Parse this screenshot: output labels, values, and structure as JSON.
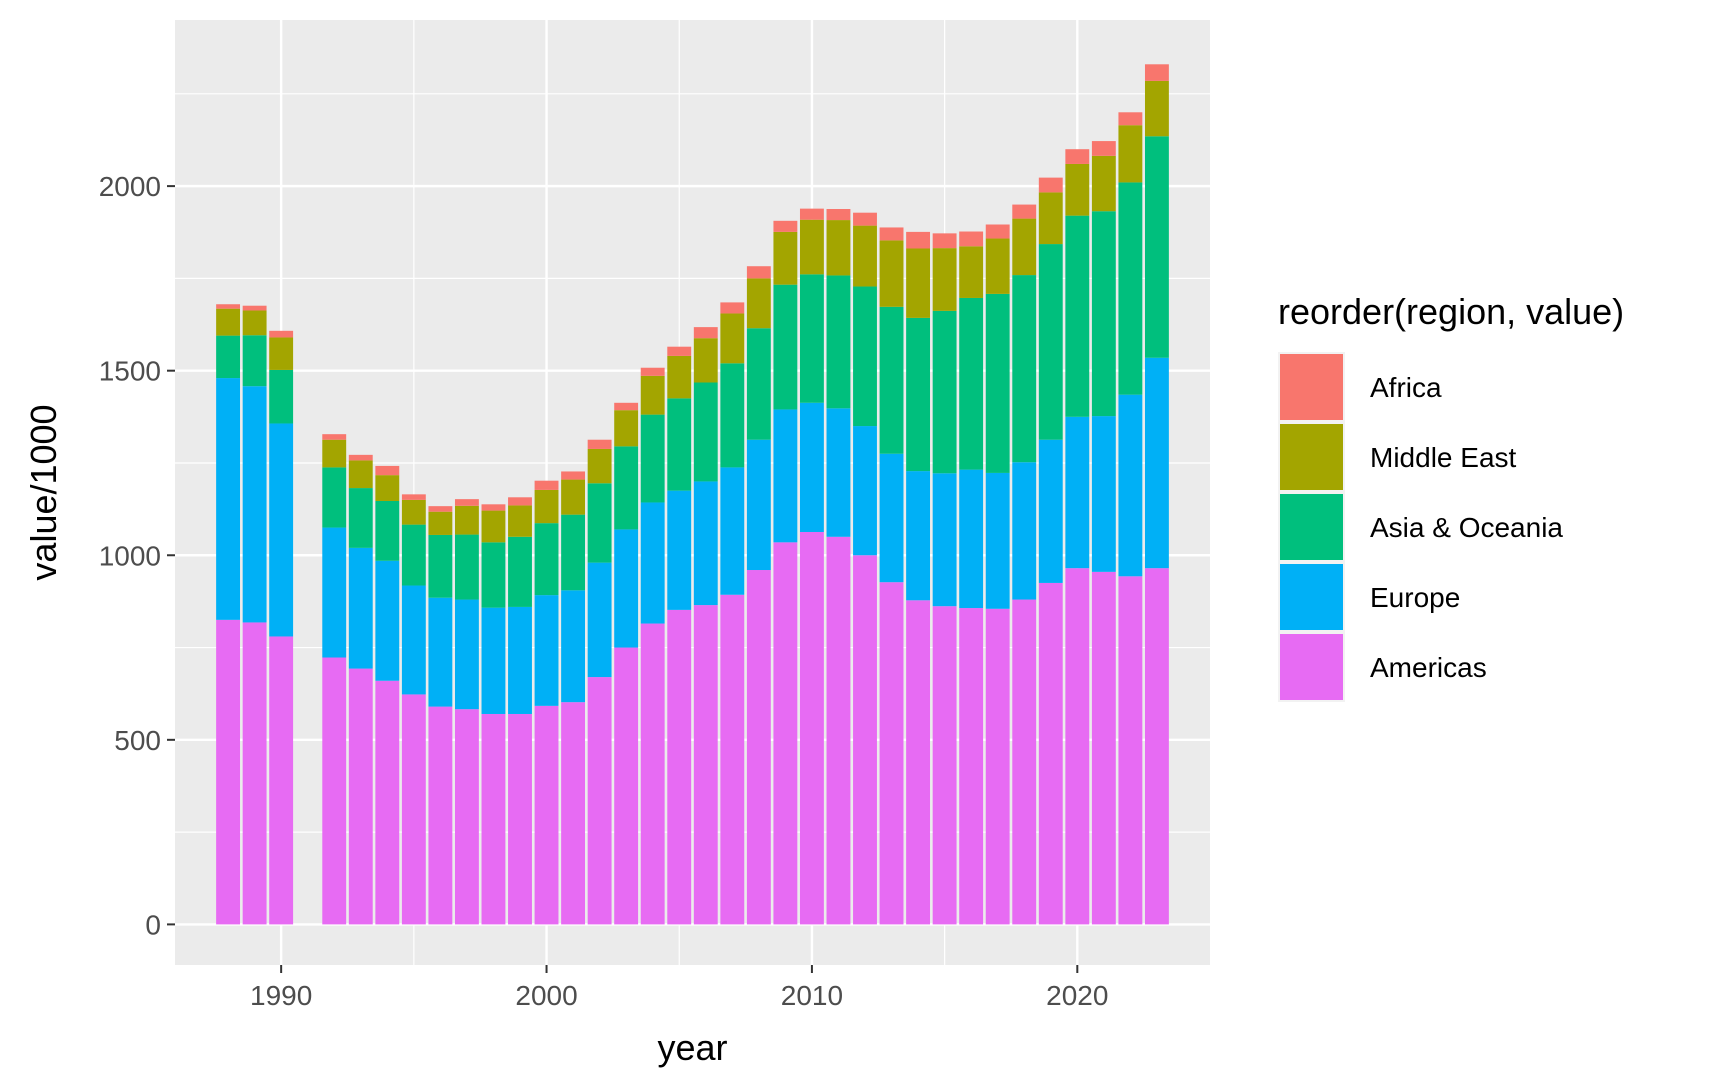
{
  "chart_data": {
    "type": "bar",
    "stacked": true,
    "xlabel": "year",
    "ylabel": "value/1000",
    "xlim": [
      1986,
      2025
    ],
    "ylim": [
      -110,
      2450
    ],
    "x_ticks": [
      1990,
      2000,
      2010,
      2020
    ],
    "y_ticks": [
      0,
      500,
      1000,
      1500,
      2000
    ],
    "grid": true,
    "legend": {
      "title": "reorder(region, value)",
      "position": "right"
    },
    "x": [
      1988,
      1989,
      1990,
      1992,
      1993,
      1994,
      1995,
      1996,
      1997,
      1998,
      1999,
      2000,
      2001,
      2002,
      2003,
      2004,
      2005,
      2006,
      2007,
      2008,
      2009,
      2010,
      2011,
      2012,
      2013,
      2014,
      2015,
      2016,
      2017,
      2018,
      2019,
      2020,
      2021,
      2022,
      2023
    ],
    "series": [
      {
        "name": "Americas",
        "color": "#E76BF3",
        "values": [
          825,
          818,
          780,
          723,
          693,
          660,
          623,
          590,
          583,
          570,
          570,
          592,
          602,
          670,
          750,
          815,
          852,
          865,
          893,
          960,
          1035,
          1063,
          1050,
          1000,
          927,
          878,
          862,
          857,
          855,
          880,
          925,
          965,
          955,
          943,
          965
        ]
      },
      {
        "name": "Europe",
        "color": "#00B0F6",
        "values": [
          655,
          640,
          577,
          352,
          327,
          325,
          295,
          295,
          297,
          288,
          290,
          300,
          303,
          310,
          320,
          328,
          323,
          335,
          345,
          353,
          360,
          350,
          348,
          350,
          348,
          350,
          360,
          375,
          368,
          372,
          388,
          410,
          422,
          492,
          570
        ]
      },
      {
        "name": "Asia & Oceania",
        "color": "#00BF7D",
        "values": [
          115,
          138,
          145,
          163,
          162,
          162,
          165,
          170,
          176,
          177,
          190,
          195,
          205,
          215,
          225,
          238,
          250,
          268,
          282,
          302,
          338,
          348,
          360,
          378,
          398,
          415,
          440,
          465,
          485,
          507,
          530,
          545,
          555,
          575,
          600
        ]
      },
      {
        "name": "Middle East",
        "color": "#A3A500",
        "values": [
          73,
          67,
          88,
          75,
          75,
          70,
          67,
          63,
          78,
          86,
          85,
          90,
          95,
          93,
          98,
          105,
          115,
          120,
          135,
          135,
          143,
          148,
          150,
          165,
          180,
          188,
          170,
          140,
          150,
          153,
          140,
          140,
          150,
          155,
          150
        ]
      },
      {
        "name": "Africa",
        "color": "#F8766D",
        "values": [
          12,
          13,
          18,
          15,
          15,
          25,
          15,
          15,
          18,
          17,
          22,
          25,
          22,
          25,
          20,
          22,
          25,
          30,
          30,
          33,
          30,
          30,
          30,
          35,
          35,
          45,
          40,
          40,
          38,
          38,
          40,
          40,
          40,
          35,
          45
        ]
      }
    ],
    "legend_order": [
      "Africa",
      "Middle East",
      "Asia & Oceania",
      "Europe",
      "Americas"
    ]
  }
}
